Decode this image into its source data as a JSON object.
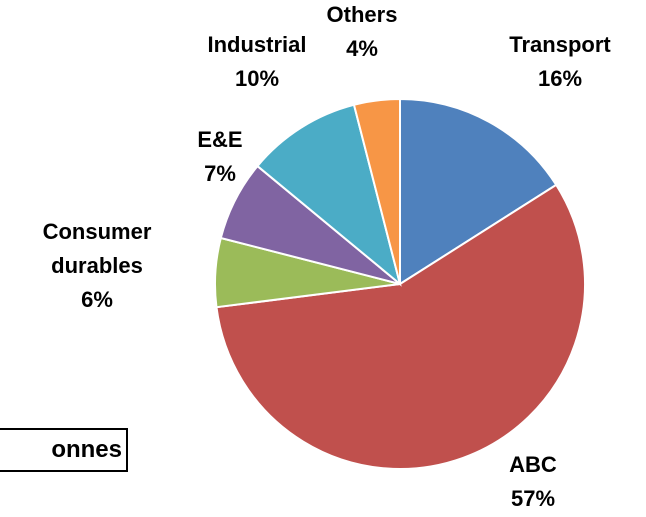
{
  "chart_data": {
    "type": "pie",
    "unit_label": "onnes",
    "categories": [
      "Transport",
      "ABC",
      "Consumer durables",
      "E&E",
      "Industrial",
      "Others"
    ],
    "values": [
      16,
      57,
      6,
      7,
      10,
      4
    ],
    "value_labels": [
      "16%",
      "57%",
      "6%",
      "7%",
      "10%",
      "4%"
    ],
    "colors": [
      "#4f81bd",
      "#c0504d",
      "#9bbb59",
      "#8064a2",
      "#4bacc6",
      "#f79646"
    ]
  }
}
